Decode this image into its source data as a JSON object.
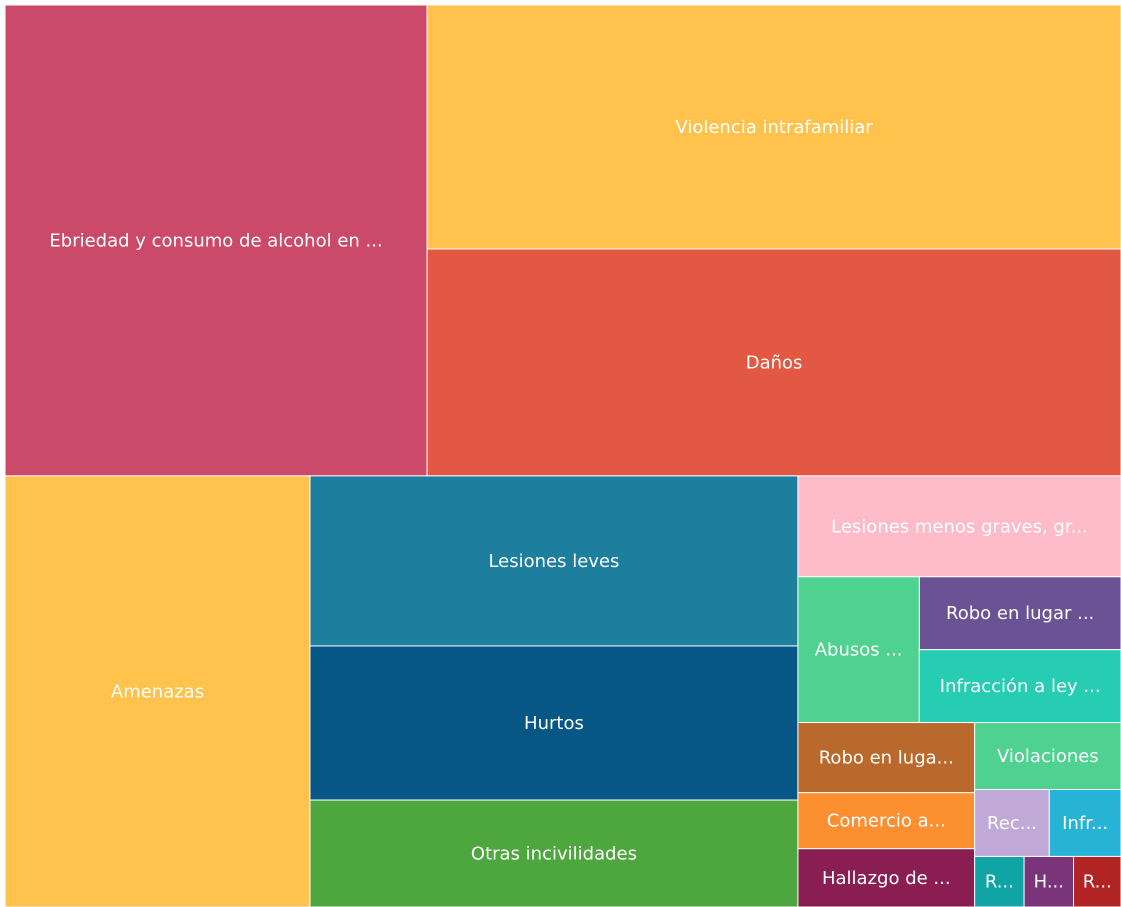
{
  "chart_data": {
    "type": "treemap",
    "categories": [
      "Ebriedad y consumo de alcohol en ...",
      "Violencia intrafamiliar",
      "Daños",
      "Amenazas",
      "Lesiones leves",
      "Hurtos",
      "Otras incivilidades",
      "Lesiones menos graves, gr...",
      "Abusos ...",
      "Robo en lugar ...",
      "Infracción a ley ...",
      "Robo en luga...",
      "Comercio a...",
      "Hallazgo de ...",
      "Violaciones",
      "Rec...",
      "Infr...",
      "R...",
      "H...",
      "R..."
    ],
    "values": [
      1988,
      1693,
      1575,
      1315,
      830,
      752,
      522,
      326,
      177,
      147,
      147,
      124,
      99,
      103,
      98,
      50,
      48,
      25,
      25,
      24
    ],
    "colors": [
      "#cb4a6a",
      "#fec24d",
      "#e25842",
      "#fec24d",
      "#1d7e9e",
      "#075786",
      "#4ea63f",
      "#fdbcc7",
      "#4fd18f",
      "#6a5294",
      "#27cdb3",
      "#b9692c",
      "#fc8f30",
      "#8a1d51",
      "#4fd18f",
      "#c0a8d7",
      "#27b3d6",
      "#10a4a4",
      "#7a347a",
      "#b22424"
    ]
  }
}
